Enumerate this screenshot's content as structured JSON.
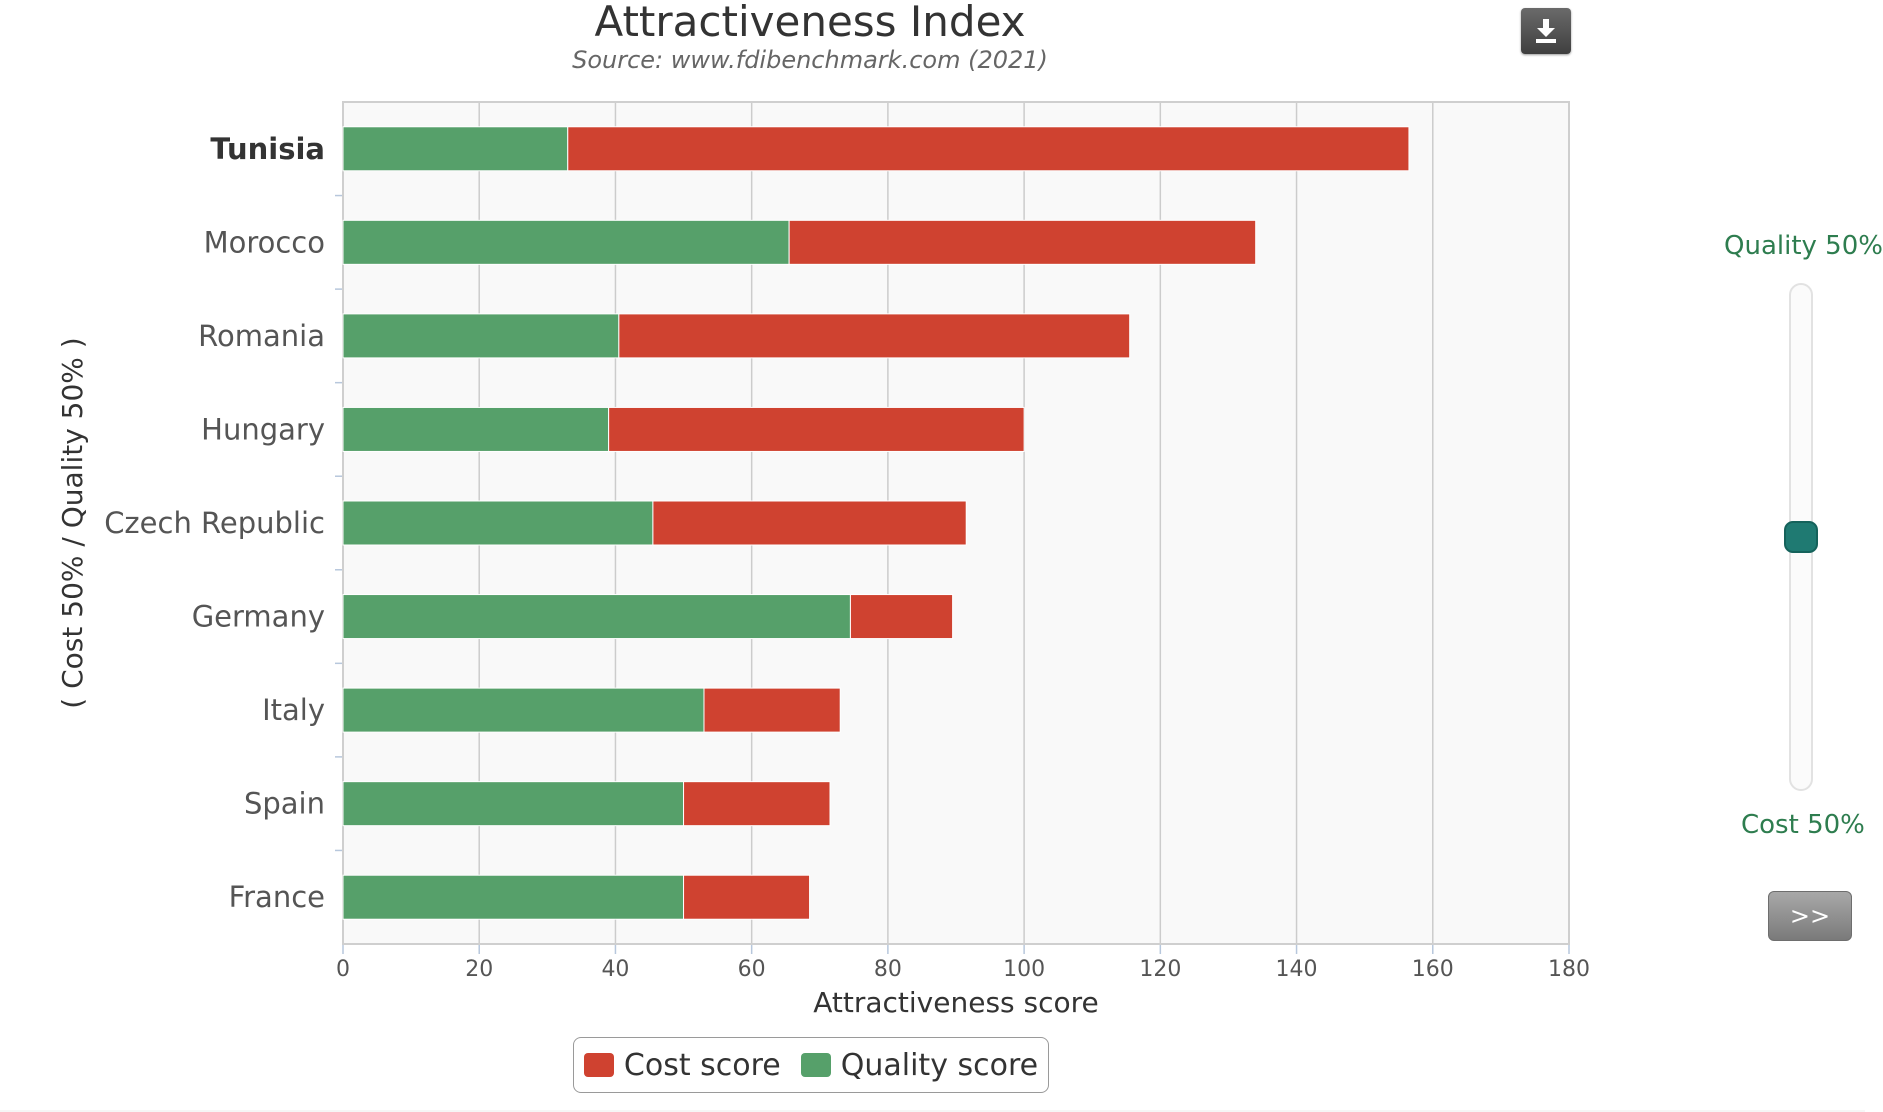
{
  "chart_data": {
    "type": "bar",
    "orientation": "horizontal",
    "stacked": true,
    "title": "Attractiveness Index",
    "subtitle": "Source: www.fdibenchmark.com (2021)",
    "xlabel": "Attractiveness score",
    "ylabel": "( Cost 50% / Quality 50% )",
    "xlim": [
      0,
      180
    ],
    "x_ticks": [
      0,
      20,
      40,
      60,
      80,
      100,
      120,
      140,
      160,
      180
    ],
    "grid": true,
    "legend_position": "bottom",
    "categories": [
      "Tunisia",
      "Morocco",
      "Romania",
      "Hungary",
      "Czech Republic",
      "Germany",
      "Italy",
      "Spain",
      "France"
    ],
    "highlighted_category": "Tunisia",
    "series": [
      {
        "name": "Quality score",
        "color": "#56a06a",
        "values": [
          33,
          65.5,
          40.5,
          39,
          45.5,
          74.5,
          53,
          50,
          50
        ]
      },
      {
        "name": "Cost score",
        "color": "#cf4230",
        "values": [
          123.5,
          68.5,
          75,
          61,
          46,
          15,
          20,
          21.5,
          18.5
        ]
      }
    ]
  },
  "legend": {
    "items": [
      {
        "label": "Cost score",
        "color": "#cf4230"
      },
      {
        "label": "Quality score",
        "color": "#56a06a"
      }
    ]
  },
  "slider": {
    "top_label": "Quality 50%",
    "bottom_label": "Cost 50%",
    "value": 0.5
  },
  "controls": {
    "next_label": ">>",
    "download_icon": "download-icon"
  }
}
